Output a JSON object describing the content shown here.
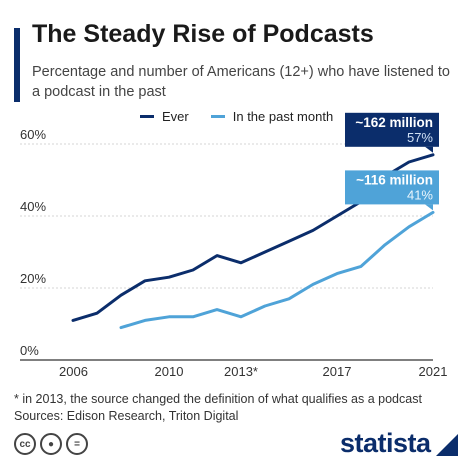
{
  "title": "The Steady Rise of Podcasts",
  "subtitle": "Percentage and number of Americans (12+) who have listened to a podcast in the past",
  "colors": {
    "ever": "#0b2d6b",
    "month": "#4fa3d8",
    "accent": "#0b2d6b"
  },
  "footnote_lines": [
    "* in 2013, the source changed the definition of what qualifies as a podcast",
    "Sources: Edison Research, Triton Digital"
  ],
  "brand": "statista",
  "license_icons": [
    "cc-icon",
    "by-icon",
    "nd-icon"
  ],
  "chart_data": {
    "type": "line",
    "xlim": [
      2006,
      2021
    ],
    "ylim": [
      0,
      60
    ],
    "y_ticks": [
      0,
      20,
      40,
      60
    ],
    "y_tick_labels": [
      "0%",
      "20%",
      "40%",
      "60%"
    ],
    "x_ticks": [
      2006,
      2010,
      2013,
      2017,
      2021
    ],
    "x_tick_labels": [
      "2006",
      "2010",
      "2013*",
      "2017",
      "2021"
    ],
    "grid": true,
    "legend_position": "top",
    "series": [
      {
        "name": "Ever",
        "color": "#0b2d6b",
        "x": [
          2006,
          2007,
          2008,
          2009,
          2010,
          2011,
          2012,
          2013,
          2014,
          2015,
          2016,
          2017,
          2018,
          2019,
          2020,
          2021
        ],
        "y": [
          11,
          13,
          18,
          22,
          23,
          25,
          29,
          27,
          30,
          33,
          36,
          40,
          44,
          51,
          55,
          57
        ],
        "callout_line1": "~162 million",
        "callout_line2": "57%"
      },
      {
        "name": "In the past month",
        "color": "#4fa3d8",
        "x": [
          2008,
          2009,
          2010,
          2011,
          2012,
          2013,
          2014,
          2015,
          2016,
          2017,
          2018,
          2019,
          2020,
          2021
        ],
        "y": [
          9,
          11,
          12,
          12,
          14,
          12,
          15,
          17,
          21,
          24,
          26,
          32,
          37,
          41
        ],
        "callout_line1": "~116 million",
        "callout_line2": "41%"
      }
    ]
  }
}
